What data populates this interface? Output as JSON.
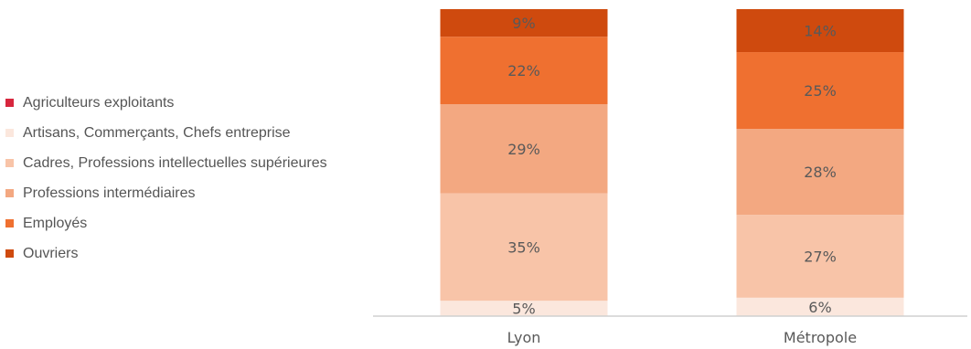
{
  "chart_data": {
    "type": "bar",
    "stacked": true,
    "orientation": "vertical",
    "categories": [
      "Lyon",
      "Métropole"
    ],
    "series": [
      {
        "name": "Agriculteurs exploitants",
        "color": "#D7263D",
        "values": [
          0,
          0
        ],
        "labels": [
          "",
          ""
        ]
      },
      {
        "name": "Artisans, Commerçants, Chefs entreprise",
        "color": "#FBE7DD",
        "values": [
          5,
          6
        ],
        "labels": [
          "5%",
          "6%"
        ]
      },
      {
        "name": "Cadres, Professions intellectuelles supérieures",
        "color": "#F8C4A8",
        "values": [
          35,
          27
        ],
        "labels": [
          "35%",
          "27%"
        ]
      },
      {
        "name": "Professions intermédiaires",
        "color": "#F3A881",
        "values": [
          29,
          28
        ],
        "labels": [
          "29%",
          "28%"
        ]
      },
      {
        "name": "Employés",
        "color": "#EF7030",
        "values": [
          22,
          25
        ],
        "labels": [
          "22%",
          "25%"
        ]
      },
      {
        "name": "Ouvriers",
        "color": "#CF4A0E",
        "values": [
          9,
          14
        ],
        "labels": [
          "9%",
          "14%"
        ]
      }
    ],
    "ylim": [
      0,
      100
    ],
    "grid": false,
    "legend_position": "left",
    "title": "",
    "xlabel": "",
    "ylabel": ""
  }
}
